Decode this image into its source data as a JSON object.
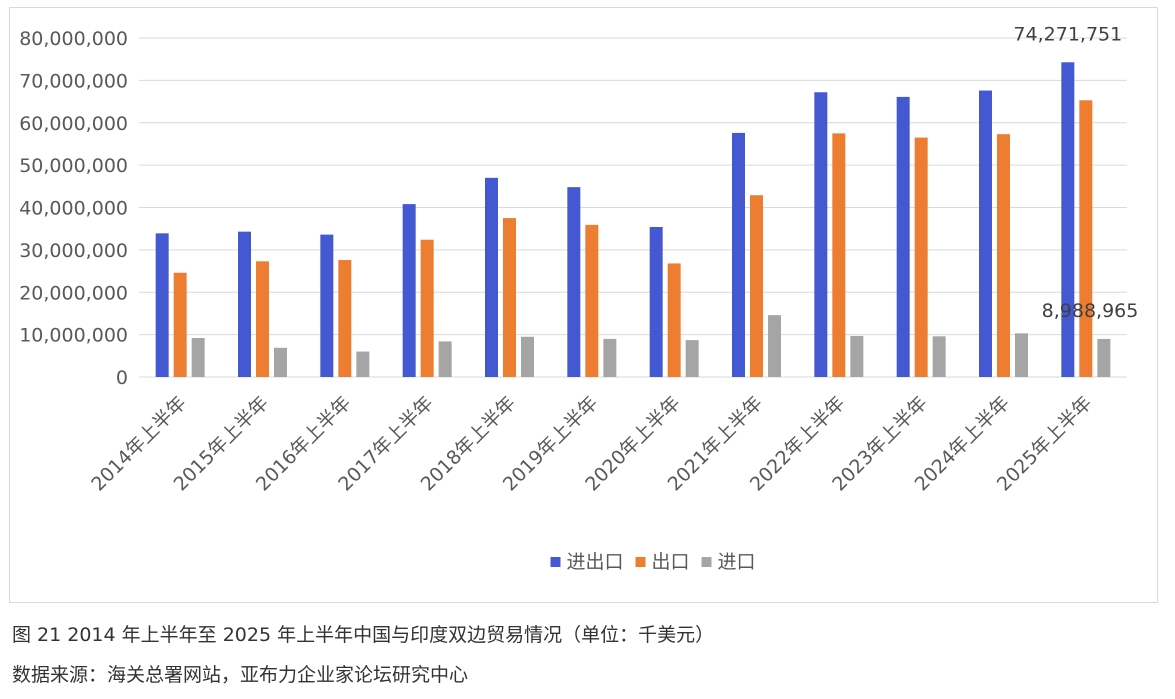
{
  "figure": {
    "caption": "图 21   2014 年上半年至 2025 年上半年中国与印度双边贸易情况（单位：千美元）",
    "source": "数据来源：海关总署网站，亚布力企业家论坛研究中心"
  },
  "chart_data": {
    "type": "bar",
    "categories": [
      "2014年上半年",
      "2015年上半年",
      "2016年上半年",
      "2017年上半年",
      "2018年上半年",
      "2019年上半年",
      "2020年上半年",
      "2021年上半年",
      "2022年上半年",
      "2023年上半年",
      "2024年上半年",
      "2025年上半年"
    ],
    "series": [
      {
        "name": "进出口",
        "color": "#4458d2",
        "values": [
          33900000,
          34300000,
          33600000,
          40800000,
          47000000,
          44800000,
          35400000,
          57600000,
          67200000,
          66100000,
          67600000,
          74271751
        ]
      },
      {
        "name": "出口",
        "color": "#ed7d31",
        "values": [
          24600000,
          27300000,
          27600000,
          32400000,
          37500000,
          35900000,
          26800000,
          42900000,
          57500000,
          56500000,
          57300000,
          65300000
        ]
      },
      {
        "name": "进口",
        "color": "#a5a5a5",
        "values": [
          9200000,
          6900000,
          6000000,
          8400000,
          9500000,
          9000000,
          8700000,
          14600000,
          9700000,
          9600000,
          10300000,
          8988965
        ]
      }
    ],
    "data_labels": [
      {
        "series": 0,
        "index": 11,
        "text": "74,271,751"
      },
      {
        "series": 2,
        "index": 11,
        "text": "8,988,965"
      }
    ],
    "yticks": [
      "0",
      "10,000,000",
      "20,000,000",
      "30,000,000",
      "40,000,000",
      "50,000,000",
      "60,000,000",
      "70,000,000",
      "80,000,000"
    ],
    "ylim": [
      0,
      80000000
    ],
    "xlabel": "",
    "ylabel": "",
    "grid": true,
    "legend_position": "bottom"
  }
}
